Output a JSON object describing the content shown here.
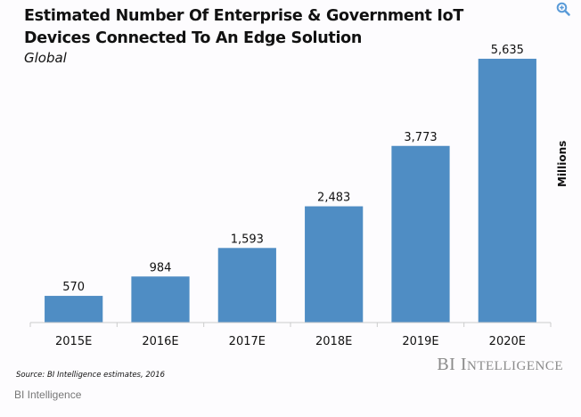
{
  "header": {
    "title": "Estimated Number Of Enterprise & Government IoT Devices Connected To An Edge Solution",
    "subtitle": "Global",
    "zoom_icon": "zoom-in-icon"
  },
  "chart_data": {
    "type": "bar",
    "title": "Estimated Number Of Enterprise & Government IoT Devices Connected To An Edge Solution",
    "subtitle": "Global",
    "categories": [
      "2015E",
      "2016E",
      "2017E",
      "2018E",
      "2019E",
      "2020E"
    ],
    "values": [
      570,
      984,
      1593,
      2483,
      3773,
      5635
    ],
    "data_labels": [
      "570",
      "984",
      "1,593",
      "2,483",
      "3,773",
      "5,635"
    ],
    "xlabel": "",
    "ylabel": "Millions",
    "ylim": [
      0,
      5900
    ],
    "grid": false,
    "legend": "none",
    "bar_color": "#4f8dc4",
    "axis_color": "#cccccc"
  },
  "footer": {
    "source": "Source: BI Intelligence estimates, 2016",
    "logo_first": "BI I",
    "logo_rest": "NTELLIGENCE",
    "brand": "BI Intelligence"
  }
}
